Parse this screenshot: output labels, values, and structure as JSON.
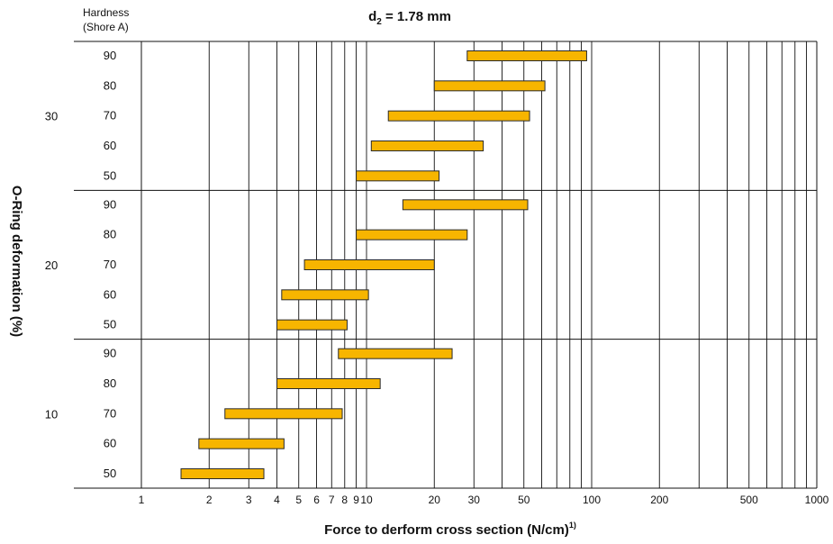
{
  "chart_data": {
    "type": "range-bar",
    "title_main": "d",
    "title_sub": "2",
    "title_rest": " = 1.78 mm",
    "hardness_header": [
      "Hardness",
      "(Shore A)"
    ],
    "ylabel": "O-Ring deformation (%)",
    "xlabel": "Force to derform cross section (N/cm)",
    "xlabel_sup": "1)",
    "xscale": "log",
    "xlim": [
      1,
      1000
    ],
    "x_ticks": [
      1,
      2,
      3,
      4,
      5,
      6,
      7,
      8,
      9,
      10,
      20,
      30,
      50,
      100,
      200,
      500,
      1000
    ],
    "x_tick_labels": [
      "1",
      "2",
      "3",
      "4",
      "5",
      "6",
      "7",
      "8",
      "9",
      "10",
      "20",
      "30",
      "50",
      "100",
      "200",
      "500",
      "1000"
    ],
    "x_gridlines": [
      2,
      3,
      4,
      5,
      6,
      7,
      8,
      9,
      10,
      20,
      30,
      40,
      50,
      60,
      70,
      80,
      90,
      100,
      200,
      300,
      400,
      500,
      600,
      700,
      800,
      900
    ],
    "bar_color": "#f7b500",
    "groups": [
      {
        "deformation": "30",
        "rows": [
          {
            "hardness": "90",
            "min": 28,
            "max": 95
          },
          {
            "hardness": "80",
            "min": 20,
            "max": 62
          },
          {
            "hardness": "70",
            "min": 12.5,
            "max": 53
          },
          {
            "hardness": "60",
            "min": 10.5,
            "max": 33
          },
          {
            "hardness": "50",
            "min": 9,
            "max": 21
          }
        ]
      },
      {
        "deformation": "20",
        "rows": [
          {
            "hardness": "90",
            "min": 14.5,
            "max": 52
          },
          {
            "hardness": "80",
            "min": 9,
            "max": 28
          },
          {
            "hardness": "70",
            "min": 5.3,
            "max": 20
          },
          {
            "hardness": "60",
            "min": 4.2,
            "max": 10.2
          },
          {
            "hardness": "50",
            "min": 4,
            "max": 8.2
          }
        ]
      },
      {
        "deformation": "10",
        "rows": [
          {
            "hardness": "90",
            "min": 7.5,
            "max": 24
          },
          {
            "hardness": "80",
            "min": 4,
            "max": 11.5
          },
          {
            "hardness": "70",
            "min": 2.35,
            "max": 7.8
          },
          {
            "hardness": "60",
            "min": 1.8,
            "max": 4.3
          },
          {
            "hardness": "50",
            "min": 1.5,
            "max": 3.5
          }
        ]
      }
    ]
  }
}
